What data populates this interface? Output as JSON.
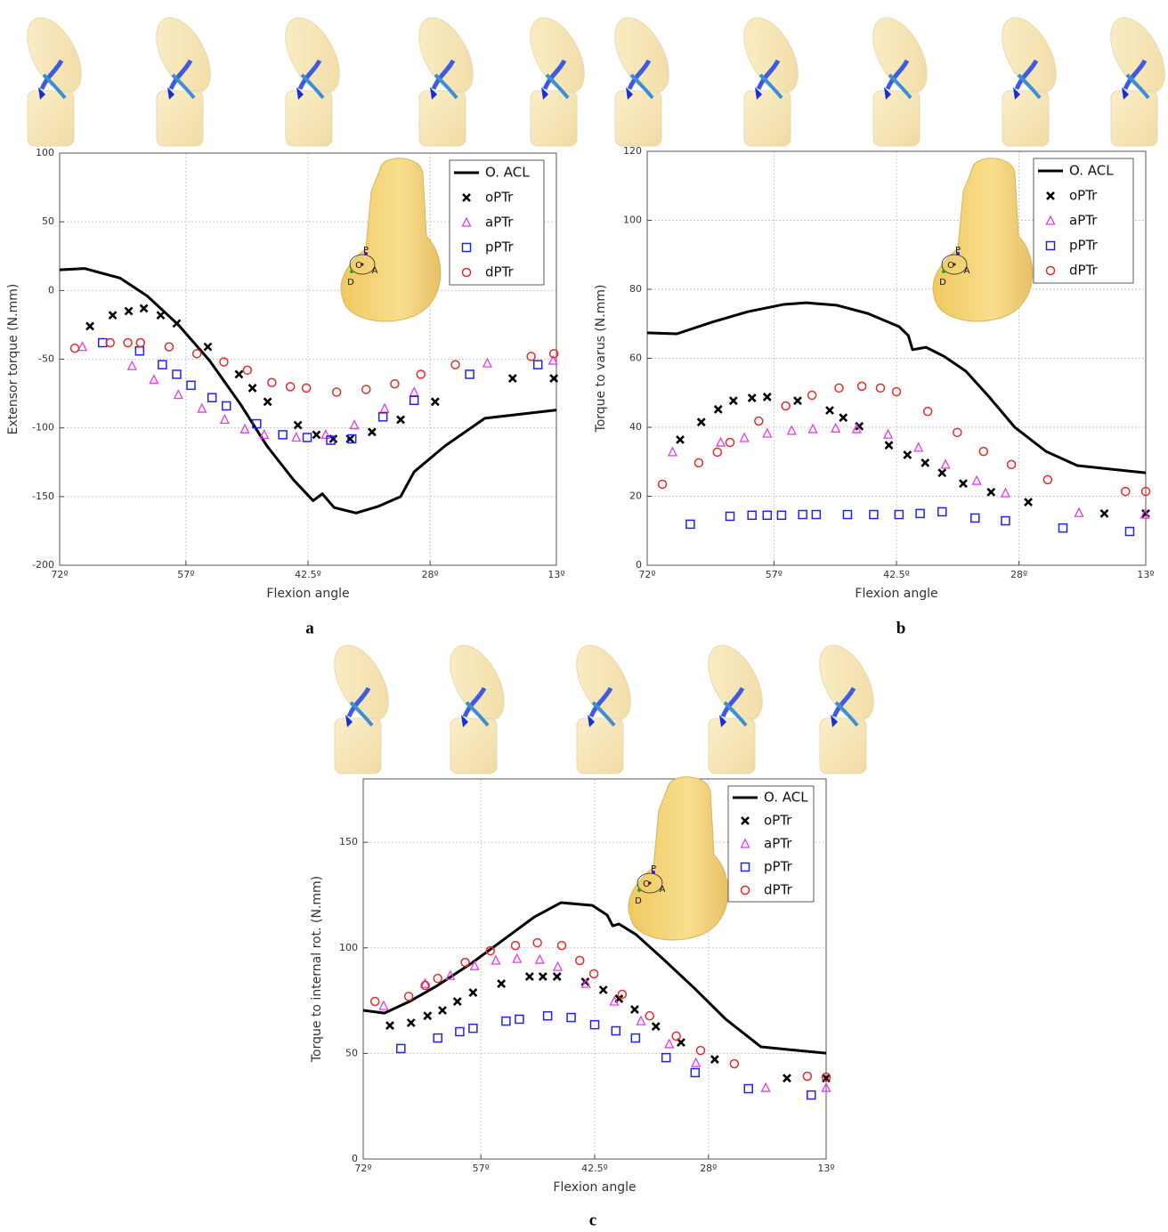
{
  "chart_data": [
    {
      "type": "scatter",
      "panel": "a",
      "xlabel": "Flexion angle",
      "ylabel": "Extensor torque (N.mm)",
      "xlim": [
        72,
        13
      ],
      "ylim": [
        -200,
        100
      ],
      "xticks": [
        {
          "value": 72,
          "label": "72º"
        },
        {
          "value": 57,
          "label": "57º"
        },
        {
          "value": 42.5,
          "label": "42.5º"
        },
        {
          "value": 28,
          "label": "28º"
        },
        {
          "value": 13,
          "label": "13º"
        }
      ],
      "yticks": [
        -200,
        -150,
        -100,
        -50,
        0,
        50,
        100
      ],
      "grid": true,
      "legend": "upper right",
      "inset_labels": [
        "P",
        "O",
        "A",
        "D"
      ],
      "series": [
        {
          "name": "O. ACL",
          "color": "#000000",
          "marker": "line",
          "x": [
            72,
            69.0,
            64.8,
            61.6,
            57.9,
            54.2,
            50.5,
            47.4,
            44.2,
            41.9,
            40.8,
            39.4,
            36.8,
            34.1,
            31.5,
            29.9,
            26.2,
            21.5,
            13
          ],
          "values": [
            15,
            16,
            9,
            -4,
            -25,
            -51,
            -83,
            -113,
            -138,
            -153,
            -148,
            -158,
            -162,
            -157,
            -150,
            -132,
            -113,
            -93,
            -87
          ]
        },
        {
          "name": "oPTr",
          "color": "#000000",
          "marker": "cross",
          "x": [
            68.4,
            65.7,
            63.8,
            62.0,
            60.0,
            58.1,
            54.4,
            50.7,
            49.1,
            47.3,
            43.7,
            41.5,
            39.5,
            37.5,
            34.9,
            31.5,
            27.4,
            18.2,
            13.3
          ],
          "values": [
            -26,
            -18,
            -15,
            -13,
            -18,
            -24,
            -41,
            -61,
            -71,
            -81,
            -98,
            -105,
            -108,
            -108,
            -103,
            -94,
            -81,
            -64,
            -64
          ]
        },
        {
          "name": "aPTr",
          "color": "#e83ae8",
          "marker": "triangle",
          "x": [
            69.3,
            63.4,
            60.8,
            57.9,
            55.1,
            52.4,
            50.0,
            47.7,
            43.9,
            40.4,
            37.0,
            33.4,
            29.9,
            21.2,
            13.4
          ],
          "values": [
            -41,
            -55,
            -65,
            -76,
            -86,
            -94,
            -101,
            -105,
            -107,
            -105,
            -98,
            -86,
            -74,
            -53,
            -51
          ]
        },
        {
          "name": "pPTr",
          "color": "#2222ee",
          "marker": "square",
          "x": [
            66.9,
            62.5,
            59.8,
            58.1,
            56.4,
            53.9,
            52.2,
            48.6,
            45.5,
            42.6,
            39.8,
            37.3,
            33.6,
            29.9,
            23.3,
            15.2
          ],
          "values": [
            -38,
            -44,
            -54,
            -61,
            -69,
            -78,
            -84,
            -97,
            -105,
            -107,
            -109,
            -108,
            -92,
            -80,
            -61,
            -54
          ]
        },
        {
          "name": "dPTr",
          "color": "#e82828",
          "marker": "circle",
          "x": [
            70.2,
            66.0,
            63.9,
            62.4,
            59.0,
            55.7,
            52.5,
            49.7,
            46.8,
            44.6,
            42.7,
            39.1,
            35.6,
            32.2,
            29.1,
            25.0,
            16.0,
            13.3
          ],
          "values": [
            -42,
            -38,
            -38,
            -38,
            -41,
            -46,
            -52,
            -58,
            -67,
            -70,
            -71,
            -74,
            -72,
            -68,
            -61,
            -54,
            -48,
            -46
          ]
        }
      ]
    },
    {
      "type": "scatter",
      "panel": "b",
      "xlabel": "Flexion angle",
      "ylabel": "Torque to varus (N.mm)",
      "xlim": [
        72,
        13
      ],
      "ylim": [
        0,
        120
      ],
      "xticks": [
        {
          "value": 72,
          "label": "72º"
        },
        {
          "value": 57,
          "label": "57º"
        },
        {
          "value": 42.5,
          "label": "42.5º"
        },
        {
          "value": 28,
          "label": "28º"
        },
        {
          "value": 13,
          "label": "13º"
        }
      ],
      "yticks": [
        0,
        20,
        40,
        60,
        80,
        100,
        120
      ],
      "grid": true,
      "legend": "upper right",
      "inset_labels": [
        "P",
        "O",
        "A",
        "D"
      ],
      "series": [
        {
          "name": "O. ACL",
          "color": "#000000",
          "marker": "line",
          "x": [
            72,
            68.5,
            64.3,
            60.1,
            55.9,
            53.2,
            49.6,
            45.9,
            42.2,
            41.1,
            40.6,
            39.0,
            36.9,
            34.3,
            31.6,
            28.5,
            24.8,
            21.1,
            13
          ],
          "values": [
            67.4,
            67.1,
            70.5,
            73.5,
            75.6,
            76.1,
            75.4,
            73.0,
            69.2,
            66.6,
            62.5,
            63.2,
            60.6,
            56.3,
            49.0,
            40.0,
            33.0,
            28.9,
            26.8
          ]
        },
        {
          "name": "oPTr",
          "color": "#000000",
          "marker": "cross",
          "x": [
            68.1,
            65.6,
            63.6,
            61.8,
            59.6,
            57.8,
            54.2,
            50.4,
            48.8,
            46.9,
            43.4,
            41.2,
            39.1,
            37.1,
            34.6,
            31.3,
            26.9,
            17.9,
            13
          ],
          "values": [
            36.4,
            41.5,
            45.2,
            47.7,
            48.5,
            48.8,
            47.7,
            44.9,
            42.8,
            40.3,
            34.8,
            32.0,
            29.7,
            26.8,
            23.7,
            21.2,
            18.3,
            15.0,
            15.0
          ]
        },
        {
          "name": "aPTr",
          "color": "#e83ae8",
          "marker": "triangle",
          "x": [
            69.0,
            63.3,
            60.5,
            57.8,
            54.9,
            52.4,
            49.7,
            47.2,
            43.5,
            39.9,
            36.7,
            33.0,
            29.6,
            20.9,
            13.1
          ],
          "values": [
            32.8,
            35.6,
            36.9,
            38.2,
            39.0,
            39.5,
            39.7,
            39.5,
            37.9,
            34.1,
            29.2,
            24.5,
            20.9,
            15.2,
            14.7
          ]
        },
        {
          "name": "pPTr",
          "color": "#2222ee",
          "marker": "square",
          "x": [
            66.9,
            62.2,
            59.6,
            57.8,
            56.1,
            53.6,
            52.0,
            48.3,
            45.2,
            42.2,
            39.7,
            37.1,
            33.2,
            29.6,
            22.8,
            14.9
          ],
          "values": [
            11.9,
            14.2,
            14.5,
            14.5,
            14.5,
            14.7,
            14.7,
            14.7,
            14.7,
            14.7,
            15.0,
            15.5,
            13.7,
            12.9,
            10.8,
            9.8
          ]
        },
        {
          "name": "dPTr",
          "color": "#e82828",
          "marker": "circle",
          "x": [
            70.2,
            65.9,
            63.7,
            62.2,
            58.8,
            55.6,
            52.5,
            49.3,
            46.6,
            44.4,
            42.5,
            38.8,
            35.3,
            32.2,
            28.9,
            24.6,
            15.4,
            13
          ],
          "values": [
            23.5,
            29.7,
            32.8,
            35.6,
            41.8,
            46.2,
            49.3,
            51.4,
            51.9,
            51.4,
            50.3,
            44.6,
            38.5,
            33.0,
            29.2,
            24.8,
            21.4,
            21.4
          ]
        }
      ]
    },
    {
      "type": "scatter",
      "panel": "c",
      "xlabel": "Flexion angle",
      "ylabel": "Torque to internal rot. (N.mm)",
      "xlim": [
        72,
        13
      ],
      "ylim": [
        0,
        180
      ],
      "xticks": [
        {
          "value": 72,
          "label": "72º"
        },
        {
          "value": 57,
          "label": "57º"
        },
        {
          "value": 42.5,
          "label": "42.5º"
        },
        {
          "value": 28,
          "label": "28º"
        },
        {
          "value": 13,
          "label": "13º"
        }
      ],
      "yticks": [
        0,
        50,
        100,
        150
      ],
      "grid": true,
      "legend": "upper right",
      "inset_labels": [
        "P",
        "O",
        "A",
        "D"
      ],
      "series": [
        {
          "name": "O. ACL",
          "color": "#000000",
          "marker": "line",
          "x": [
            72,
            69.3,
            66.1,
            62.7,
            58.2,
            54.8,
            50.2,
            46.8,
            42.8,
            40.9,
            40.2,
            39.4,
            37.2,
            33.8,
            29.8,
            25.8,
            21.3,
            13
          ],
          "values": [
            70.4,
            69.1,
            74.6,
            81.8,
            92.7,
            102,
            114.6,
            121.4,
            120.1,
            115.5,
            110.4,
            111.3,
            106.2,
            94.8,
            80.9,
            66.2,
            53.1,
            50.1
          ]
        },
        {
          "name": "oPTr",
          "color": "#000000",
          "marker": "cross",
          "x": [
            68.6,
            65.9,
            63.8,
            61.9,
            60.0,
            58.0,
            54.4,
            50.8,
            49.1,
            47.3,
            43.7,
            41.4,
            39.4,
            37.4,
            34.7,
            31.5,
            27.2,
            18.0,
            13
          ],
          "values": [
            63.2,
            64.5,
            67.8,
            70.4,
            74.6,
            78.8,
            83.0,
            86.4,
            86.4,
            86.4,
            83.9,
            80.1,
            75.9,
            70.8,
            62.8,
            55.2,
            47.2,
            38.3,
            38.3
          ]
        },
        {
          "name": "aPTr",
          "color": "#e83ae8",
          "marker": "triangle",
          "x": [
            69.4,
            64.1,
            60.9,
            57.8,
            55.1,
            52.4,
            49.5,
            47.2,
            43.6,
            40.0,
            36.6,
            33.0,
            29.6,
            20.7,
            13
          ],
          "values": [
            72.5,
            83.0,
            86.8,
            91.4,
            94.0,
            94.8,
            94.4,
            91.0,
            83.0,
            74.6,
            65.3,
            54.4,
            45.5,
            33.7,
            33.7
          ]
        },
        {
          "name": "pPTr",
          "color": "#2222ee",
          "marker": "square",
          "x": [
            67.2,
            62.5,
            59.7,
            58.0,
            53.8,
            52.1,
            48.5,
            45.5,
            42.5,
            39.8,
            37.3,
            33.4,
            29.7,
            22.9,
            14.9
          ],
          "values": [
            52.3,
            57.3,
            60.3,
            61.9,
            65.3,
            66.2,
            67.8,
            67.0,
            63.6,
            60.7,
            57.3,
            48.0,
            40.9,
            33.3,
            30.3
          ]
        },
        {
          "name": "dPTr",
          "color": "#e82828",
          "marker": "circle",
          "x": [
            70.5,
            66.2,
            64.1,
            62.5,
            59.0,
            55.8,
            52.6,
            49.8,
            46.7,
            44.4,
            42.6,
            39.0,
            35.5,
            32.1,
            29.0,
            24.7,
            15.4,
            13
          ],
          "values": [
            74.6,
            77.0,
            82.2,
            85.5,
            93.1,
            98.6,
            101.1,
            102.4,
            101.1,
            94.0,
            87.7,
            78.0,
            67.8,
            58.2,
            51.4,
            45.1,
            39.2,
            38.8
          ]
        }
      ]
    }
  ]
}
